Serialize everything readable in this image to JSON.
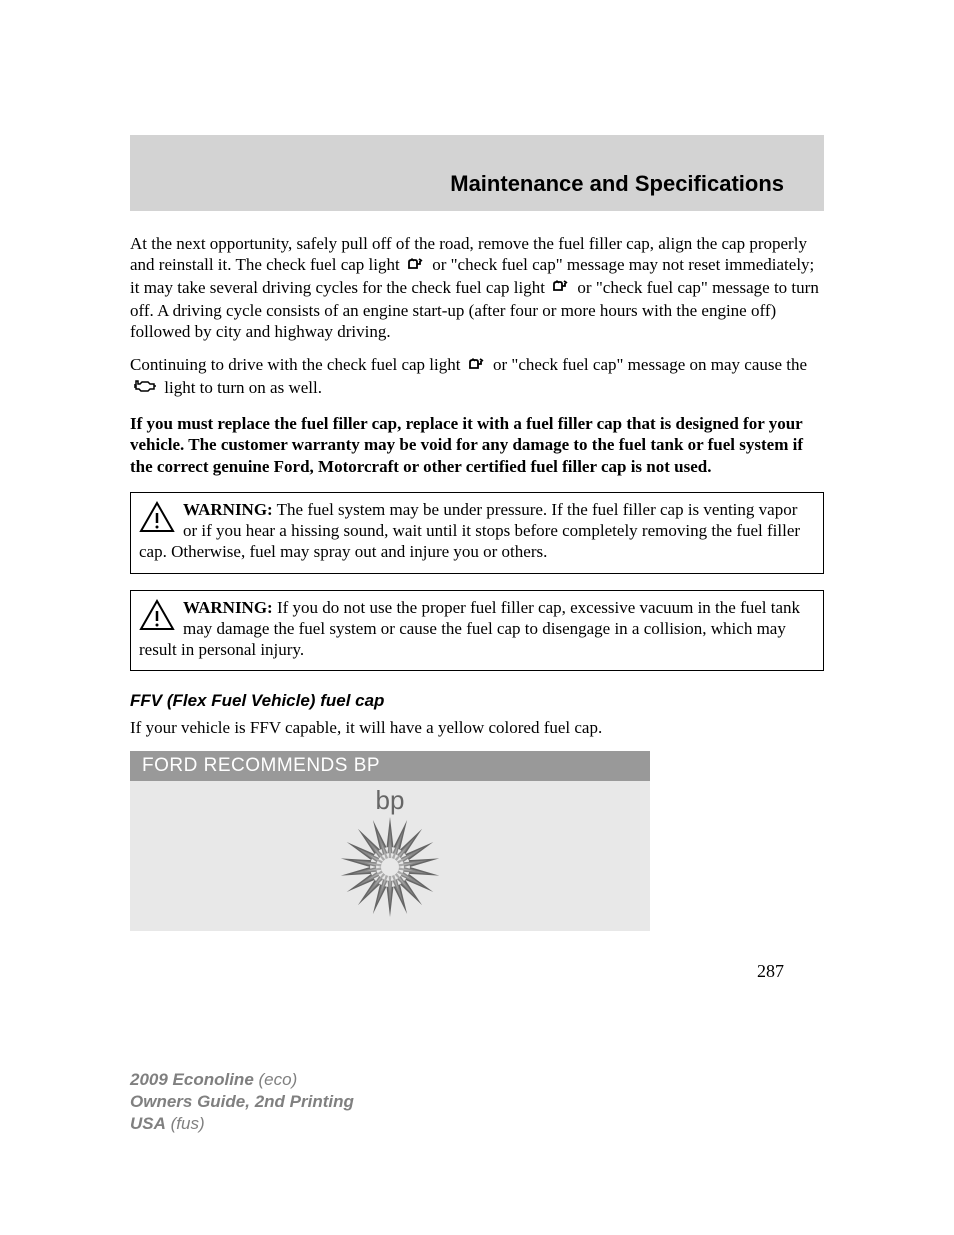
{
  "header": {
    "title": "Maintenance and Specifications",
    "background_color": "#d3d3d3",
    "title_fontsize": 22
  },
  "paragraphs": {
    "p1_a": "At the next opportunity, safely pull off of the road, remove the fuel filler cap, align the cap properly and reinstall it. The check fuel cap light ",
    "p1_b": " or \"check fuel cap\" message may not reset immediately; it may take several driving cycles for the check fuel cap light ",
    "p1_c": " or \"check fuel cap\" message to turn off. A driving cycle consists of an engine start-up (after four or more hours with the engine off) followed by city and highway driving.",
    "p2_a": "Continuing to drive with the check fuel cap light ",
    "p2_b": " or \"check fuel cap\" message on may cause the ",
    "p2_c": " light to turn on as well.",
    "bold_notice": "If you must replace the fuel filler cap, replace it with a fuel filler cap that is designed for your vehicle. The customer warranty may be void for any damage to the fuel tank or fuel system if the correct genuine Ford, Motorcraft or other certified fuel filler cap is not used."
  },
  "warnings": {
    "w1_label": "WARNING:",
    "w1_text": " The fuel system may be under pressure. If the fuel filler cap is venting vapor or if you hear a hissing sound, wait until it stops before completely removing the fuel filler cap. Otherwise, fuel may spray out and injure you or others.",
    "w2_label": "WARNING:",
    "w2_text": " If you do not use the proper fuel filler cap, excessive vacuum in the fuel tank may damage the fuel system or cause the fuel cap to disengage in a collision, which may result in personal injury."
  },
  "ffv": {
    "heading": "FFV (Flex Fuel Vehicle) fuel cap",
    "text": "If your vehicle is FFV capable, it will have a yellow colored fuel cap."
  },
  "bp_panel": {
    "header_text": "FORD RECOMMENDS BP",
    "header_bg": "#999999",
    "header_text_color": "#ffffff",
    "body_bg": "#e8e8e8",
    "logo_text": "bp",
    "logo_colors": {
      "dark": "#666666",
      "mid": "#888888",
      "light": "#aaaaaa"
    }
  },
  "page_number": "287",
  "footer": {
    "line1_bold": "2009 Econoline",
    "line1_rest": " (eco)",
    "line2": "Owners Guide, 2nd Printing",
    "line3_bold": "USA",
    "line3_rest": " (fus)"
  },
  "icons": {
    "fuel_cap_color": "#000000",
    "engine_color": "#000000",
    "warning_triangle_stroke": "#000000"
  }
}
